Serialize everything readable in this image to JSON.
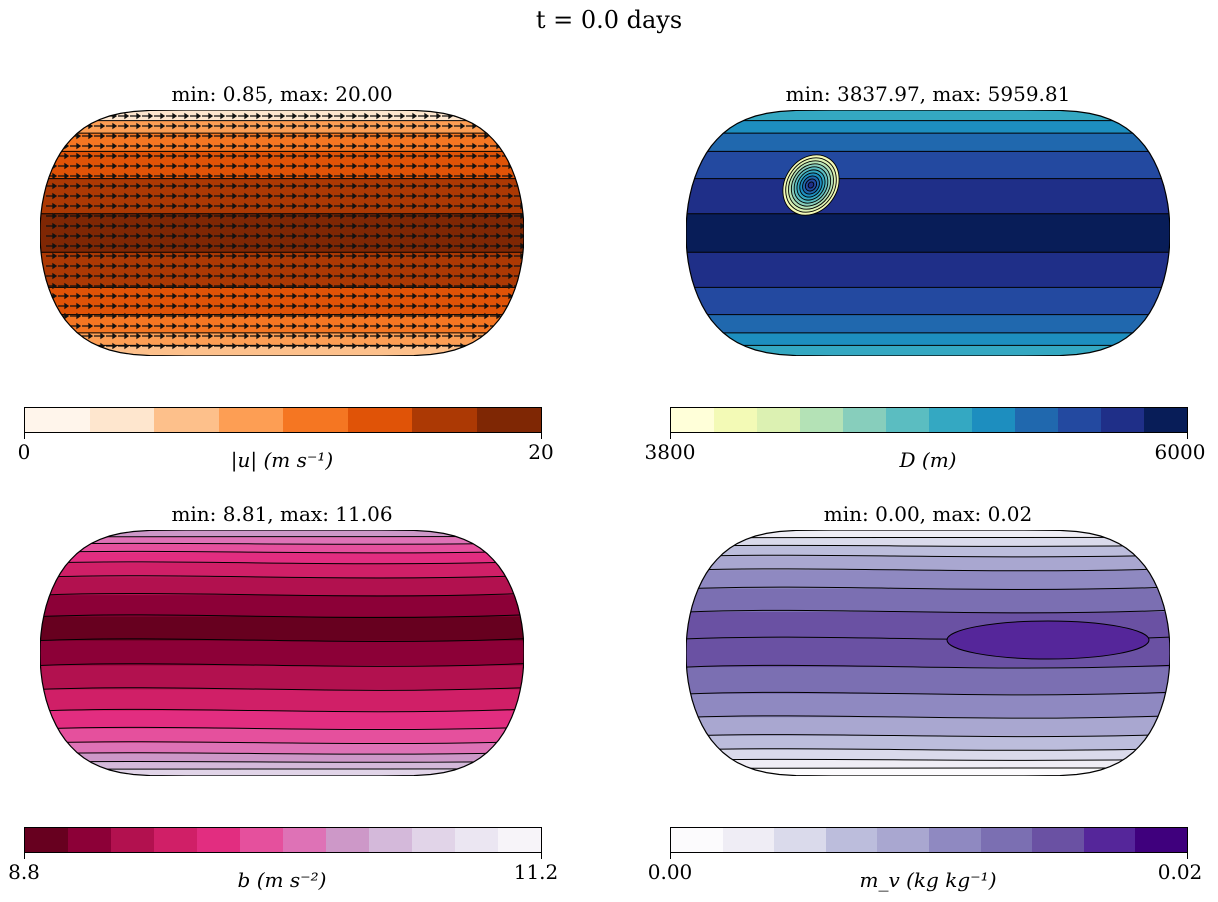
{
  "suptitle": "t = 0.0 days",
  "chart_data": [
    {
      "type": "heatmap",
      "title": "min: 0.85, max: 20.00",
      "colorbar": {
        "label": "|u| (m s⁻¹)",
        "ticks": [
          "0",
          "20"
        ],
        "range": [
          0,
          20
        ],
        "colors": [
          "#fff5eb",
          "#fee6ce",
          "#fdc08b",
          "#fd9e54",
          "#f57622",
          "#e05307",
          "#ac3904",
          "#7f2704"
        ]
      },
      "bands_north_to_south": [
        "#fee6ce",
        "#fd9e54",
        "#f57622",
        "#e05307",
        "#ac3904",
        "#7f2704",
        "#ac3904",
        "#e05307",
        "#f57622",
        "#fd9e54",
        "#fdc08b"
      ],
      "overlay": "wind vectors pointing east"
    },
    {
      "type": "heatmap",
      "title": "min: 3837.97, max: 5959.81",
      "colorbar": {
        "label": "D (m)",
        "ticks": [
          "3800",
          "6000"
        ],
        "range": [
          3800,
          6000
        ],
        "colors": [
          "#ffffd9",
          "#f3fab6",
          "#dcf1b2",
          "#b4e2b6",
          "#87cebc",
          "#5bbdc1",
          "#34a8c2",
          "#1d8ebf",
          "#2068ae",
          "#2349a0",
          "#1f2f88",
          "#081d58"
        ]
      },
      "bands_north_to_south": [
        "#34a8c2",
        "#1d8ebf",
        "#2068ae",
        "#2349a0",
        "#1f2f88",
        "#081d58",
        "#1f2f88",
        "#2349a0",
        "#2068ae",
        "#1d8ebf",
        "#34a8c2"
      ],
      "overlay": "localized depth perturbation near northern mid-latitudes"
    },
    {
      "type": "heatmap",
      "title": "min: 8.81, max: 11.06",
      "colorbar": {
        "label": "b (m s⁻²)",
        "ticks": [
          "8.8",
          "11.2"
        ],
        "range": [
          8.8,
          11.2
        ],
        "colors": [
          "#67001f",
          "#8c0037",
          "#b2114f",
          "#d01f67",
          "#e22d80",
          "#e5509d",
          "#de72b6",
          "#cd98c8",
          "#d4b9da",
          "#e1d4e8",
          "#ebe6f2",
          "#f7f4f9"
        ]
      },
      "bands_north_to_south": [
        "#cd98c8",
        "#de72b6",
        "#e5509d",
        "#e22d80",
        "#d01f67",
        "#b2114f",
        "#8c0037",
        "#67001f",
        "#8c0037",
        "#b2114f",
        "#d01f67",
        "#e22d80",
        "#e5509d",
        "#de72b6",
        "#cd98c8",
        "#d4b9da",
        "#e1d4e8"
      ]
    },
    {
      "type": "heatmap",
      "title": "min: 0.00, max: 0.02",
      "colorbar": {
        "label": "m_v (kg kg⁻¹)",
        "ticks": [
          "0.00",
          "0.02"
        ],
        "range": [
          0.0,
          0.02
        ],
        "colors": [
          "#fcfbfd",
          "#efedf5",
          "#dadaeb",
          "#bcbddc",
          "#a9a7d0",
          "#8f89c1",
          "#7b6fb2",
          "#6a51a3",
          "#55269a",
          "#3f007d"
        ]
      },
      "bands_north_to_south": [
        "#efedf5",
        "#dadaeb",
        "#bcbddc",
        "#a9a7d0",
        "#8f89c1",
        "#7b6fb2",
        "#6a51a3",
        "#6a51a3",
        "#7b6fb2",
        "#8f89c1",
        "#a9a7d0",
        "#bcbddc",
        "#dadaeb",
        "#efedf5",
        "#fcfbfd"
      ]
    }
  ]
}
